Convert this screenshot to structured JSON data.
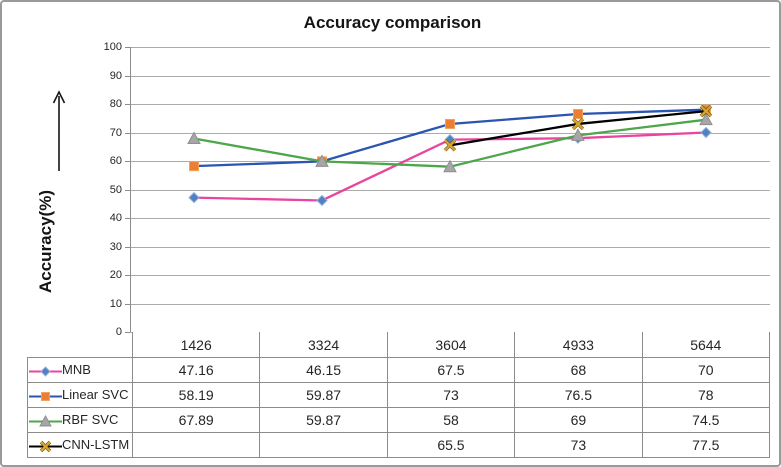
{
  "figure": {
    "title": "Accuracy comparison",
    "y_axis_title": "Accuracy(%)"
  },
  "chart_data": {
    "type": "line",
    "title": "Accuracy comparison",
    "ylabel": "Accuracy(%)",
    "xlabel": "",
    "categories": [
      "1426",
      "3324",
      "3604",
      "4933",
      "5644"
    ],
    "ylim": [
      0,
      100
    ],
    "y_ticks": [
      100,
      90,
      80,
      70,
      60,
      50,
      40,
      30,
      20,
      10,
      0
    ],
    "grid": true,
    "legend_position": "table-left",
    "colors": {
      "gridline": "#ababab",
      "axis": "#8c8c8c",
      "tick": "#8c8c8c"
    },
    "series": [
      {
        "name": "MNB",
        "values": [
          47.16,
          46.15,
          67.5,
          68,
          70
        ],
        "line_color": "#e8459f",
        "marker": "diamond",
        "marker_color": "#5181c2",
        "marker_edge": "#8fb0dd"
      },
      {
        "name": "Linear SVC",
        "values": [
          58.19,
          59.87,
          73,
          76.5,
          78
        ],
        "line_color": "#2b55b0",
        "marker": "square",
        "marker_color": "#ed7d31",
        "marker_edge": "#f2a15f"
      },
      {
        "name": "RBF SVC",
        "values": [
          67.89,
          59.87,
          58,
          69,
          74.5
        ],
        "line_color": "#4da64a",
        "marker": "triangle",
        "marker_color": "#a6a6a6",
        "marker_edge": "#8f8f8f"
      },
      {
        "name": "CNN-LSTM",
        "values": [
          null,
          null,
          65.5,
          73,
          77.5
        ],
        "line_color": "#000000",
        "marker": "x",
        "marker_color": "#d9a52f",
        "marker_edge": "#6b5410"
      }
    ]
  },
  "table": {
    "columns": [
      "1426",
      "3324",
      "3604",
      "4933",
      "5644"
    ],
    "rows": [
      {
        "label": "MNB",
        "cells": [
          "47.16",
          "46.15",
          "67.5",
          "68",
          "70"
        ]
      },
      {
        "label": "Linear SVC",
        "cells": [
          "58.19",
          "59.87",
          "73",
          "76.5",
          "78"
        ]
      },
      {
        "label": "RBF SVC",
        "cells": [
          "67.89",
          "59.87",
          "58",
          "69",
          "74.5"
        ]
      },
      {
        "label": "CNN-LSTM",
        "cells": [
          "",
          "",
          "65.5",
          "73",
          "77.5"
        ]
      }
    ]
  }
}
